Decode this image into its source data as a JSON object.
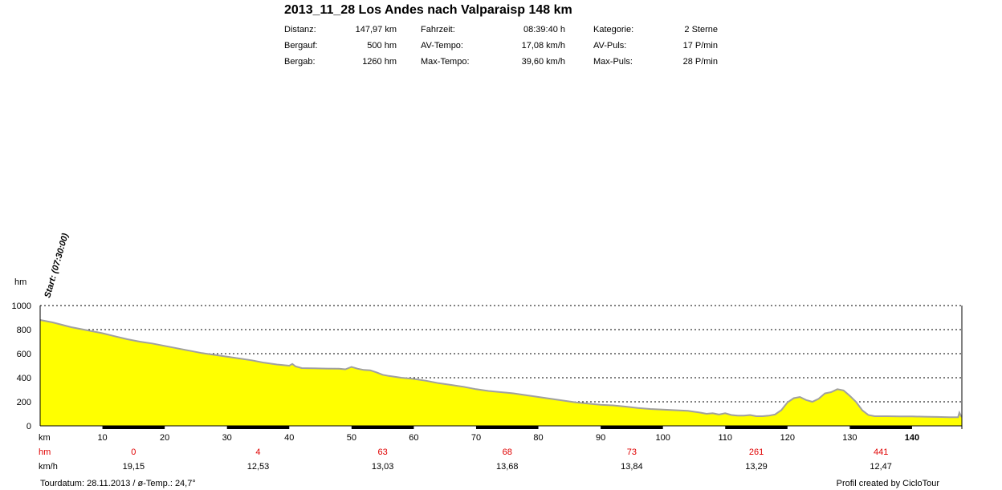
{
  "header": {
    "title": "2013_11_28 Los Andes nach Valparaisp 148 km",
    "stats": [
      {
        "label": "Distanz:",
        "value": "147,97 km"
      },
      {
        "label": "Bergauf:",
        "value": "500 hm"
      },
      {
        "label": "Bergab:",
        "value": "1260 hm"
      },
      {
        "label": "Fahrzeit:",
        "value": "08:39:40 h"
      },
      {
        "label": "AV-Tempo:",
        "value": "17,08 km/h"
      },
      {
        "label": "Max-Tempo:",
        "value": "39,60 km/h"
      },
      {
        "label": "Kategorie:",
        "value": "2 Sterne"
      },
      {
        "label": "AV-Puls:",
        "value": "17 P/min"
      },
      {
        "label": "Max-Puls:",
        "value": "28 P/min"
      }
    ]
  },
  "chart_data": {
    "type": "area",
    "title": "2013_11_28 Los Andes nach Valparaisp 148 km",
    "xlabel": "km",
    "ylabel": "hm",
    "xlim": [
      0,
      148
    ],
    "ylim": [
      0,
      1000
    ],
    "grid": "horizontal dotted",
    "y_ticks": [
      0,
      200,
      400,
      600,
      800,
      1000
    ],
    "x_ticks": [
      10,
      20,
      30,
      40,
      50,
      60,
      70,
      80,
      90,
      100,
      110,
      120,
      130,
      140
    ],
    "x_ticks_bold": [
      140
    ],
    "start_annotation": "Start: (07:30:00)",
    "fill_color": "#ffff00",
    "line_color": "#a0a0a0",
    "x": [
      0,
      2,
      5,
      8,
      10,
      12,
      14,
      16,
      18,
      20,
      22,
      24,
      26,
      28,
      30,
      32,
      34,
      36,
      38,
      40,
      40.5,
      41,
      42,
      44,
      46,
      48,
      49,
      50,
      51,
      52,
      53,
      54,
      55,
      56,
      58,
      60,
      62,
      64,
      66,
      68,
      70,
      72,
      74,
      76,
      78,
      80,
      82,
      84,
      86,
      88,
      90,
      92,
      94,
      96,
      98,
      100,
      102,
      104,
      106,
      107,
      108,
      109,
      110,
      111,
      112,
      113,
      114,
      115,
      116,
      117,
      118,
      119,
      120,
      121,
      122,
      123,
      124,
      125,
      126,
      127,
      128,
      129,
      130,
      131,
      132,
      133,
      134,
      136,
      138,
      140,
      142,
      144,
      146,
      147.4,
      147.6,
      147.97
    ],
    "y": [
      880,
      860,
      820,
      790,
      770,
      745,
      720,
      700,
      685,
      665,
      645,
      625,
      605,
      590,
      575,
      560,
      545,
      525,
      510,
      500,
      515,
      495,
      480,
      478,
      476,
      475,
      470,
      490,
      475,
      465,
      462,
      445,
      425,
      415,
      400,
      390,
      375,
      355,
      340,
      325,
      305,
      290,
      280,
      270,
      255,
      240,
      225,
      210,
      195,
      185,
      175,
      170,
      160,
      148,
      140,
      135,
      130,
      125,
      110,
      100,
      105,
      95,
      105,
      90,
      85,
      85,
      90,
      80,
      80,
      85,
      95,
      130,
      195,
      230,
      240,
      215,
      200,
      225,
      270,
      280,
      305,
      295,
      250,
      200,
      130,
      90,
      80,
      80,
      78,
      78,
      76,
      74,
      72,
      72,
      110,
      72
    ],
    "bottom_rows": {
      "km_label": "km",
      "hm_label": "hm",
      "kmh_label": "km/h",
      "hm_values": [
        {
          "km": 15,
          "text": "0"
        },
        {
          "km": 35,
          "text": "4"
        },
        {
          "km": 55,
          "text": "63"
        },
        {
          "km": 75,
          "text": "68"
        },
        {
          "km": 95,
          "text": "73"
        },
        {
          "km": 115,
          "text": "261"
        },
        {
          "km": 135,
          "text": "441"
        }
      ],
      "kmh_values": [
        {
          "km": 15,
          "text": "19,15"
        },
        {
          "km": 35,
          "text": "12,53"
        },
        {
          "km": 55,
          "text": "13,03"
        },
        {
          "km": 75,
          "text": "13,68"
        },
        {
          "km": 95,
          "text": "13,84"
        },
        {
          "km": 115,
          "text": "13,29"
        },
        {
          "km": 135,
          "text": "12,47"
        }
      ]
    }
  },
  "footer": {
    "left": "Tourdatum: 28.11.2013  /  ø-Temp.: 24,7°",
    "right": "Profil created by CicloTour"
  }
}
